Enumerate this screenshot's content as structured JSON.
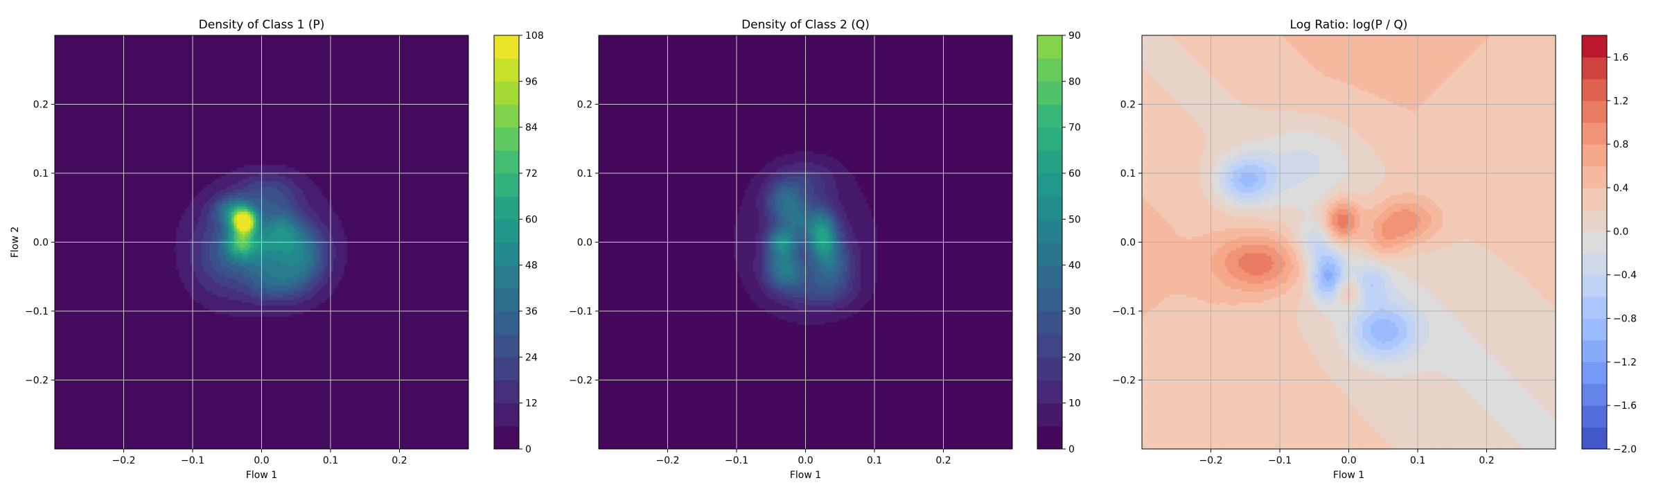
{
  "chart_data": [
    {
      "type": "heatmap",
      "title": "Density of Class 1 (P)",
      "xlabel": "Flow 1",
      "ylabel": "Flow 2",
      "xlim": [
        -0.3,
        0.3
      ],
      "ylim": [
        -0.3,
        0.3
      ],
      "xticks": [
        -0.2,
        -0.1,
        0.0,
        0.1,
        0.2
      ],
      "yticks": [
        -0.2,
        -0.1,
        0.0,
        0.1,
        0.2
      ],
      "grid": true,
      "colormap": "viridis",
      "colorbar": {
        "min": 0,
        "max": 108,
        "levels": 18,
        "ticks": [
          0,
          12,
          24,
          36,
          48,
          60,
          72,
          84,
          96,
          108
        ]
      },
      "blobs": [
        {
          "x": 0.0,
          "y": 0.0,
          "sx": 0.085,
          "sy": 0.075,
          "amp": 14
        },
        {
          "x": -0.025,
          "y": 0.03,
          "sx": 0.012,
          "sy": 0.012,
          "amp": 90
        },
        {
          "x": -0.04,
          "y": 0.045,
          "sx": 0.02,
          "sy": 0.015,
          "amp": 35
        },
        {
          "x": 0.0,
          "y": -0.01,
          "sx": 0.03,
          "sy": 0.025,
          "amp": 30
        },
        {
          "x": 0.06,
          "y": -0.02,
          "sx": 0.025,
          "sy": 0.03,
          "amp": 32
        },
        {
          "x": -0.03,
          "y": 0.0,
          "sx": 0.015,
          "sy": 0.015,
          "amp": 40
        },
        {
          "x": 0.02,
          "y": -0.06,
          "sx": 0.03,
          "sy": 0.02,
          "amp": 22
        },
        {
          "x": 0.03,
          "y": 0.02,
          "sx": 0.02,
          "sy": 0.02,
          "amp": 26
        },
        {
          "x": -0.06,
          "y": -0.02,
          "sx": 0.03,
          "sy": 0.04,
          "amp": 16
        },
        {
          "x": 0.01,
          "y": 0.07,
          "sx": 0.03,
          "sy": 0.02,
          "amp": 18
        }
      ]
    },
    {
      "type": "heatmap",
      "title": "Density of Class 2 (Q)",
      "xlabel": "Flow 1",
      "ylabel": "",
      "xlim": [
        -0.3,
        0.3
      ],
      "ylim": [
        -0.3,
        0.3
      ],
      "xticks": [
        -0.2,
        -0.1,
        0.0,
        0.1,
        0.2
      ],
      "yticks": [
        -0.2,
        -0.1,
        0.0,
        0.1,
        0.2
      ],
      "grid": true,
      "colormap": "viridis",
      "colorbar": {
        "min": 0,
        "max": 90,
        "levels": 18,
        "ticks": [
          0,
          10,
          20,
          30,
          40,
          50,
          60,
          70,
          80,
          90
        ],
        "span_of_max": 0.8333
      },
      "blobs": [
        {
          "x": 0.0,
          "y": 0.0,
          "sx": 0.08,
          "sy": 0.085,
          "amp": 14
        },
        {
          "x": 0.025,
          "y": 0.01,
          "sx": 0.015,
          "sy": 0.025,
          "amp": 55
        },
        {
          "x": -0.035,
          "y": 0.0,
          "sx": 0.015,
          "sy": 0.015,
          "amp": 45
        },
        {
          "x": -0.03,
          "y": -0.04,
          "sx": 0.02,
          "sy": 0.02,
          "amp": 42
        },
        {
          "x": -0.03,
          "y": 0.06,
          "sx": 0.02,
          "sy": 0.02,
          "amp": 32
        },
        {
          "x": 0.04,
          "y": -0.03,
          "sx": 0.02,
          "sy": 0.025,
          "amp": 28
        },
        {
          "x": 0.02,
          "y": -0.07,
          "sx": 0.035,
          "sy": 0.02,
          "amp": 18
        },
        {
          "x": 0.0,
          "y": 0.09,
          "sx": 0.03,
          "sy": 0.02,
          "amp": 14
        },
        {
          "x": -0.01,
          "y": 0.03,
          "sx": 0.02,
          "sy": 0.02,
          "amp": 25
        }
      ]
    },
    {
      "type": "heatmap",
      "title": "Log Ratio: log(P / Q)",
      "xlabel": "Flow 1",
      "ylabel": "",
      "xlim": [
        -0.3,
        0.3
      ],
      "ylim": [
        -0.3,
        0.3
      ],
      "xticks": [
        -0.2,
        -0.1,
        0.0,
        0.1,
        0.2
      ],
      "yticks": [
        -0.2,
        -0.1,
        0.0,
        0.1,
        0.2
      ],
      "grid": true,
      "colormap": "coolwarm",
      "colorbar": {
        "min": -2.0,
        "max": 1.8,
        "levels": 19,
        "ticks": [
          -2.0,
          -1.6,
          -1.2,
          -0.8,
          -0.4,
          0.0,
          0.4,
          0.8,
          1.2,
          1.6
        ]
      },
      "blobs": [
        {
          "x": -0.01,
          "y": 0.03,
          "sx": 0.018,
          "sy": 0.022,
          "amp": 1.1
        },
        {
          "x": -0.13,
          "y": -0.03,
          "sx": 0.045,
          "sy": 0.03,
          "amp": 0.9
        },
        {
          "x": 0.08,
          "y": 0.03,
          "sx": 0.035,
          "sy": 0.025,
          "amp": 0.8
        },
        {
          "x": -0.15,
          "y": 0.09,
          "sx": 0.03,
          "sy": 0.025,
          "amp": -1.0
        },
        {
          "x": -0.03,
          "y": -0.05,
          "sx": 0.018,
          "sy": 0.025,
          "amp": -1.2
        },
        {
          "x": 0.05,
          "y": -0.13,
          "sx": 0.035,
          "sy": 0.03,
          "amp": -1.0
        },
        {
          "x": 0.03,
          "y": -0.06,
          "sx": 0.02,
          "sy": 0.02,
          "amp": -0.6
        },
        {
          "x": -0.05,
          "y": 0.0,
          "sx": 0.02,
          "sy": 0.02,
          "amp": -0.5
        },
        {
          "x": -0.06,
          "y": 0.12,
          "sx": 0.05,
          "sy": 0.04,
          "amp": -0.4
        },
        {
          "x": 0.0,
          "y": -0.07,
          "sx": 0.015,
          "sy": 0.015,
          "amp": 0.6
        },
        {
          "x": 0.05,
          "y": 0.0,
          "sx": 0.02,
          "sy": 0.02,
          "amp": 0.4
        }
      ],
      "background": [
        {
          "dir": [
            -1,
            -1
          ],
          "amp": 0.3
        },
        {
          "dir": [
            1,
            1
          ],
          "amp": 0.35
        },
        {
          "dir": [
            1,
            -1
          ],
          "amp": -0.05
        },
        {
          "dir": [
            -1,
            1
          ],
          "amp": 0.15
        }
      ]
    }
  ]
}
